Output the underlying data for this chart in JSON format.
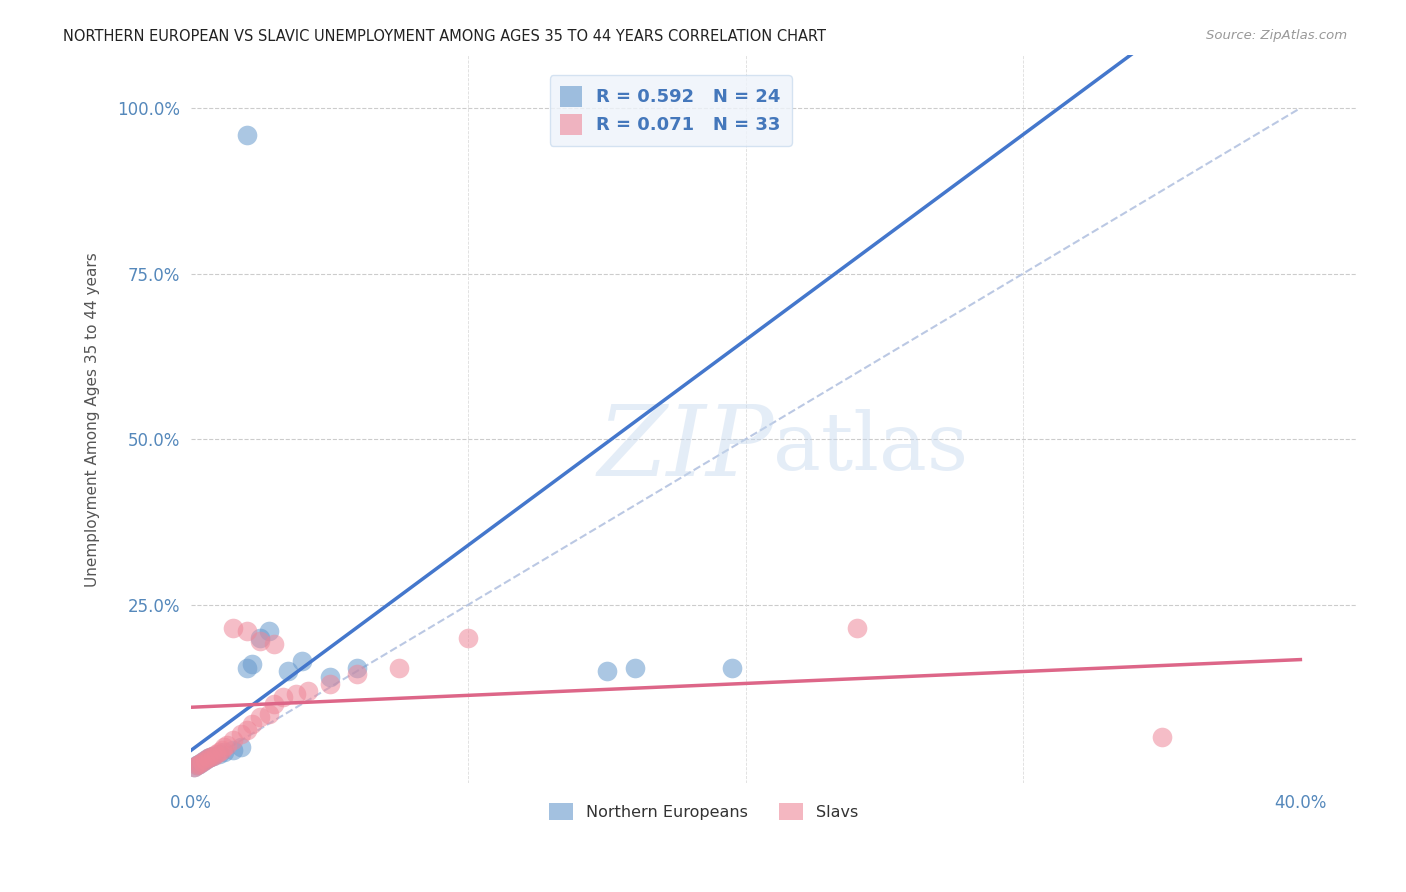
{
  "title": "NORTHERN EUROPEAN VS SLAVIC UNEMPLOYMENT AMONG AGES 35 TO 44 YEARS CORRELATION CHART",
  "source": "Source: ZipAtlas.com",
  "ylabel": "Unemployment Among Ages 35 to 44 years",
  "xlim": [
    0.0,
    0.42
  ],
  "ylim": [
    -0.02,
    1.08
  ],
  "x_ticks": [
    0.0,
    0.1,
    0.2,
    0.3,
    0.4
  ],
  "x_tick_labels": [
    "0.0%",
    "",
    "",
    "",
    "40.0%"
  ],
  "y_ticks": [
    0.0,
    0.25,
    0.5,
    0.75,
    1.0
  ],
  "y_tick_labels": [
    "",
    "25.0%",
    "50.0%",
    "75.0%",
    "100.0%"
  ],
  "northern_european_R": 0.592,
  "northern_european_N": 24,
  "slavic_R": 0.071,
  "slavic_N": 33,
  "ne_color": "#6699CC",
  "sl_color": "#EE8899",
  "ne_line_color": "#4477CC",
  "sl_line_color": "#DD6688",
  "diag_color": "#AABBDD",
  "background_color": "#FFFFFF",
  "watermark_color": "#C5D8EE",
  "tick_color": "#5588BB",
  "grid_color": "#CCCCCC",
  "legend_face": "#EEF3FA",
  "legend_edge": "#CCDDEF",
  "ne_line_slope": 3.1,
  "ne_line_intercept": 0.03,
  "sl_line_slope": 0.18,
  "sl_line_intercept": 0.095,
  "ne_x": [
    0.001,
    0.002,
    0.003,
    0.004,
    0.005,
    0.006,
    0.007,
    0.008,
    0.01,
    0.012,
    0.015,
    0.018,
    0.02,
    0.022,
    0.025,
    0.028,
    0.035,
    0.04,
    0.05,
    0.06,
    0.15,
    0.16,
    0.195,
    0.02
  ],
  "ne_y": [
    0.005,
    0.008,
    0.01,
    0.012,
    0.015,
    0.018,
    0.02,
    0.022,
    0.025,
    0.028,
    0.03,
    0.035,
    0.155,
    0.16,
    0.2,
    0.21,
    0.15,
    0.165,
    0.14,
    0.155,
    0.15,
    0.155,
    0.155,
    0.96
  ],
  "sl_x": [
    0.001,
    0.002,
    0.003,
    0.004,
    0.005,
    0.006,
    0.007,
    0.008,
    0.009,
    0.01,
    0.011,
    0.012,
    0.013,
    0.015,
    0.018,
    0.02,
    0.022,
    0.025,
    0.028,
    0.03,
    0.033,
    0.038,
    0.042,
    0.05,
    0.06,
    0.075,
    0.015,
    0.02,
    0.025,
    0.03,
    0.1,
    0.24,
    0.35
  ],
  "sl_y": [
    0.005,
    0.008,
    0.01,
    0.012,
    0.015,
    0.018,
    0.02,
    0.022,
    0.025,
    0.028,
    0.03,
    0.035,
    0.038,
    0.045,
    0.055,
    0.06,
    0.07,
    0.08,
    0.085,
    0.1,
    0.11,
    0.115,
    0.12,
    0.13,
    0.145,
    0.155,
    0.215,
    0.21,
    0.195,
    0.19,
    0.2,
    0.215,
    0.05
  ]
}
